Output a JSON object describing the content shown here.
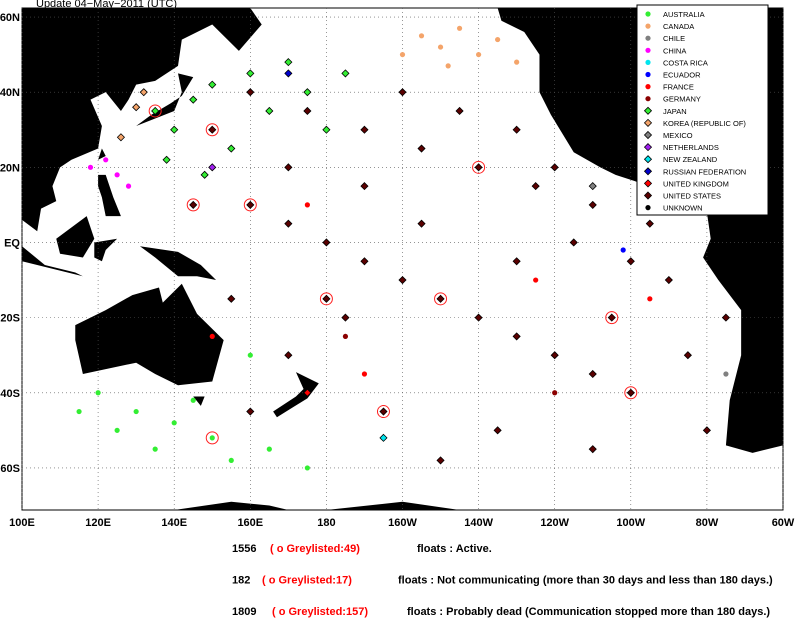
{
  "chart_data": {
    "type": "map",
    "title": "Update  04−May−2011 (UTC)",
    "xlim": [
      100,
      300
    ],
    "ylim": [
      -71.2,
      62.4
    ],
    "xticks": [
      {
        "value": 100,
        "label": "100E"
      },
      {
        "value": 120,
        "label": "120E"
      },
      {
        "value": 140,
        "label": "140E"
      },
      {
        "value": 160,
        "label": "160E"
      },
      {
        "value": 180,
        "label": "180"
      },
      {
        "value": 200,
        "label": "160W"
      },
      {
        "value": 220,
        "label": "140W"
      },
      {
        "value": 240,
        "label": "120W"
      },
      {
        "value": 260,
        "label": "100W"
      },
      {
        "value": 280,
        "label": "80W"
      },
      {
        "value": 300,
        "label": "60W"
      }
    ],
    "yticks": [
      {
        "value": 60,
        "label": "60N"
      },
      {
        "value": 40,
        "label": "40N"
      },
      {
        "value": 20,
        "label": "20N"
      },
      {
        "value": 0,
        "label": "EQ"
      },
      {
        "value": -20,
        "label": "20S"
      },
      {
        "value": -40,
        "label": "40S"
      },
      {
        "value": -60,
        "label": "60S"
      }
    ],
    "grid": true,
    "legend": [
      {
        "name": "AUSTRALIA",
        "color": "#33ee33",
        "marker": "circle"
      },
      {
        "name": "CANADA",
        "color": "#f4a46a",
        "marker": "circle"
      },
      {
        "name": "CHILE",
        "color": "#808080",
        "marker": "circle"
      },
      {
        "name": "CHINA",
        "color": "#ff00ff",
        "marker": "circle"
      },
      {
        "name": "COSTA RICA",
        "color": "#00e5ee",
        "marker": "circle"
      },
      {
        "name": "ECUADOR",
        "color": "#0000ff",
        "marker": "circle"
      },
      {
        "name": "FRANCE",
        "color": "#ff0000",
        "marker": "circle"
      },
      {
        "name": "GERMANY",
        "color": "#8b0000",
        "marker": "circle"
      },
      {
        "name": "JAPAN",
        "color": "#33ee33",
        "marker": "diamond"
      },
      {
        "name": "KOREA (REPUBLIC OF)",
        "color": "#f4a46a",
        "marker": "diamond"
      },
      {
        "name": "MEXICO",
        "color": "#808080",
        "marker": "diamond"
      },
      {
        "name": "NETHERLANDS",
        "color": "#a020f0",
        "marker": "diamond"
      },
      {
        "name": "NEW ZEALAND",
        "color": "#00e5ee",
        "marker": "diamond"
      },
      {
        "name": "RUSSIAN FEDERATION",
        "color": "#0000cd",
        "marker": "diamond"
      },
      {
        "name": "UNITED KINGDOM",
        "color": "#ff0000",
        "marker": "diamond"
      },
      {
        "name": "UNITED STATES",
        "color": "#5a0000",
        "marker": "diamond"
      },
      {
        "name": "UNKNOWN",
        "color": "#000000",
        "marker": "circle"
      }
    ],
    "floats": {
      "lon": [
        160,
        170,
        180,
        190,
        200,
        210,
        220,
        230,
        240,
        250,
        260,
        270,
        265,
        250,
        235,
        220,
        205,
        190,
        175,
        160,
        150,
        200,
        215,
        230,
        245,
        255,
        275,
        185,
        170,
        160,
        195,
        225,
        250,
        210,
        280,
        180,
        230,
        205,
        190,
        170,
        145,
        155,
        240,
        260,
        285,
        120,
        130,
        140,
        150,
        155,
        165,
        125,
        145,
        160,
        175,
        135,
        115,
        205,
        210,
        215,
        220,
        225,
        230,
        212,
        200,
        118,
        122,
        125,
        128,
        135,
        140,
        145,
        150,
        155,
        160,
        165,
        170,
        175,
        180,
        185,
        138,
        148,
        130,
        132,
        126,
        175,
        235,
        265,
        150,
        190,
        185,
        240,
        285,
        268,
        258,
        175,
        195,
        296,
        250,
        150,
        170
      ],
      "lat": [
        10,
        5,
        0,
        -5,
        -10,
        -15,
        -20,
        -25,
        -30,
        -35,
        -40,
        -10,
        5,
        10,
        15,
        20,
        25,
        30,
        35,
        40,
        30,
        40,
        35,
        30,
        0,
        -20,
        -30,
        -20,
        -30,
        -45,
        -45,
        -50,
        -55,
        -58,
        -50,
        -15,
        -5,
        5,
        15,
        20,
        10,
        -15,
        20,
        -5,
        -20,
        -40,
        -45,
        -48,
        -52,
        -58,
        -55,
        -50,
        -42,
        -30,
        -60,
        -55,
        -45,
        55,
        52,
        57,
        50,
        54,
        48,
        47,
        50,
        20,
        22,
        18,
        15,
        35,
        30,
        38,
        42,
        25,
        45,
        35,
        48,
        40,
        30,
        45,
        22,
        18,
        36,
        40,
        28,
        10,
        -10,
        -15,
        -25,
        -35,
        -25,
        -40,
        -35,
        8,
        -2,
        -40,
        -52,
        -46,
        15,
        20,
        45
      ],
      "country": [
        15,
        15,
        15,
        15,
        15,
        15,
        15,
        15,
        15,
        15,
        15,
        15,
        15,
        15,
        15,
        15,
        15,
        15,
        15,
        15,
        15,
        15,
        15,
        15,
        15,
        15,
        15,
        15,
        15,
        15,
        15,
        15,
        15,
        15,
        15,
        15,
        15,
        15,
        15,
        15,
        15,
        15,
        15,
        15,
        15,
        0,
        0,
        0,
        0,
        0,
        0,
        0,
        0,
        0,
        0,
        0,
        0,
        1,
        1,
        1,
        1,
        1,
        1,
        1,
        1,
        3,
        3,
        3,
        3,
        8,
        8,
        8,
        8,
        8,
        8,
        8,
        8,
        8,
        8,
        8,
        8,
        8,
        9,
        9,
        9,
        6,
        6,
        6,
        6,
        6,
        7,
        7,
        2,
        4,
        5,
        14,
        12,
        16,
        10,
        11,
        13
      ],
      "greylisted": [
        true,
        false,
        false,
        false,
        false,
        true,
        false,
        false,
        false,
        false,
        true,
        false,
        false,
        false,
        false,
        true,
        false,
        false,
        false,
        false,
        true,
        false,
        false,
        false,
        false,
        true,
        false,
        false,
        false,
        false,
        true,
        false,
        false,
        false,
        false,
        true,
        false,
        false,
        false,
        false,
        true,
        false,
        false,
        false,
        false,
        false,
        false,
        false,
        true,
        false,
        false,
        false,
        false,
        false,
        false,
        false,
        false,
        false,
        false,
        false,
        false,
        false,
        false,
        false,
        false,
        false,
        false,
        false,
        false,
        true,
        false,
        false,
        false,
        false,
        false,
        false,
        false,
        false,
        false,
        false,
        false,
        false,
        false,
        false,
        false,
        false,
        false,
        false,
        false,
        false,
        false,
        false,
        false,
        false,
        false,
        false,
        false,
        false,
        false,
        false,
        false
      ]
    }
  },
  "summary": [
    {
      "count": "1556",
      "greylisted": "( o Greylisted:49)",
      "text": "floats : Active."
    },
    {
      "count": "182",
      "greylisted": "( o Greylisted:17)",
      "text": "floats : Not communicating (more than 30 days and less than 180 days.)"
    },
    {
      "count": "1809",
      "greylisted": "( o Greylisted:157)",
      "text": "floats : Probably dead (Communication stopped more than 180 days.)"
    }
  ]
}
